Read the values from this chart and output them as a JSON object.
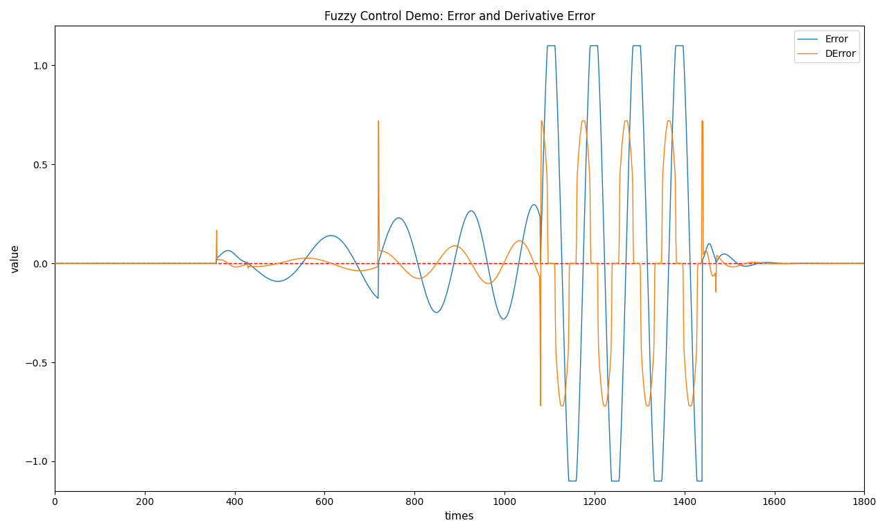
{
  "title": "Fuzzy Control Demo: Error and Derivative Error",
  "xlabel": "times",
  "ylabel": "value",
  "xlim": [
    0,
    1800
  ],
  "ylim": [
    -1.15,
    1.2
  ],
  "error_color": "#1f77b4",
  "derror_color": "#ff7f0e",
  "zero_color": "red",
  "legend_error": "Error",
  "legend_derror": "DError",
  "n_points": 1800,
  "figsize": [
    12.8,
    7.68
  ],
  "dpi": 100
}
